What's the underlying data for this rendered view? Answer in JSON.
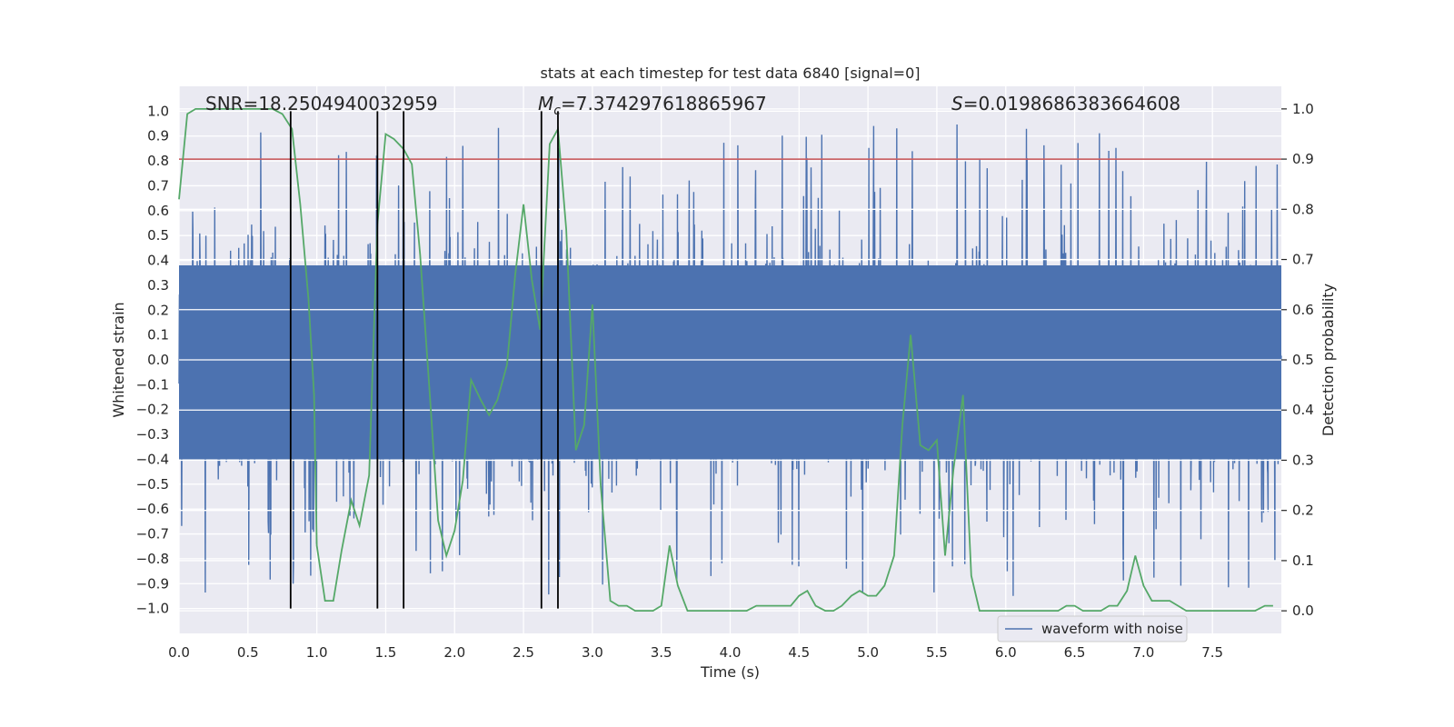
{
  "chart_data": {
    "type": "line",
    "title": "stats at each timestep for test data 6840 [signal=0]",
    "xlabel": "Time (s)",
    "ylabel": "Whitened strain",
    "y2label": "Detection probability",
    "xlim": [
      0,
      8.0
    ],
    "ylim": [
      -1.1,
      1.1
    ],
    "y2lim": [
      -0.045,
      1.045
    ],
    "x_ticks": [
      0.0,
      0.5,
      1.0,
      1.5,
      2.0,
      2.5,
      3.0,
      3.5,
      4.0,
      4.5,
      5.0,
      5.5,
      6.0,
      6.5,
      7.0,
      7.5
    ],
    "x_tick_labels": [
      "0.0",
      "0.5",
      "1.0",
      "1.5",
      "2.0",
      "2.5",
      "3.0",
      "3.5",
      "4.0",
      "4.5",
      "5.0",
      "5.5",
      "6.0",
      "6.5",
      "7.0",
      "7.5"
    ],
    "y_ticks": [
      1.0,
      0.9,
      0.8,
      0.7,
      0.6,
      0.5,
      0.4,
      0.3,
      0.2,
      0.1,
      0.0,
      -0.1,
      -0.2,
      -0.3,
      -0.4,
      -0.5,
      -0.6,
      -0.7,
      -0.8,
      -0.9,
      -1.0
    ],
    "y_tick_labels": [
      "1.0",
      "0.9",
      "0.8",
      "0.7",
      "0.6",
      "0.5",
      "0.4",
      "0.3",
      "0.2",
      "0.1",
      "0.0",
      "−0.1",
      "−0.2",
      "−0.3",
      "−0.4",
      "−0.5",
      "−0.6",
      "−0.7",
      "−0.8",
      "−0.9",
      "−1.0"
    ],
    "y2_ticks": [
      1.0,
      0.9,
      0.8,
      0.7,
      0.6,
      0.5,
      0.4,
      0.3,
      0.2,
      0.1,
      0.0
    ],
    "y2_tick_labels": [
      "1.0",
      "0.9",
      "0.8",
      "0.7",
      "0.6",
      "0.5",
      "0.4",
      "0.3",
      "0.2",
      "0.1",
      "0.0"
    ],
    "annotations": {
      "snr": "SNR=18.2504940032959",
      "mc_symbol": "M",
      "mc_sub": "c",
      "mc_value": "=7.374297618865967",
      "s_symbol": "S",
      "s_value": "=0.0198686383664608"
    },
    "threshold": {
      "y2": 0.9,
      "color": "#c44e52"
    },
    "vertical_lines": [
      0.81,
      1.44,
      1.63,
      2.63,
      2.75
    ],
    "vline_ymin": -1.0,
    "vline_ymax": 1.0,
    "legend": {
      "position": "lower-right",
      "label": "waveform with noise"
    },
    "colors": {
      "waveform": "#4c72b0",
      "probability": "#55a868",
      "vlines": "#000000",
      "background": "#eaeaf2"
    },
    "series": [
      {
        "name": "waveform with noise",
        "style": "dense-noise",
        "core_band": [
          -0.4,
          0.38
        ],
        "spike_max": 0.96,
        "spike_min": -1.0
      },
      {
        "name": "Detection probability",
        "axis": "y2",
        "points": [
          [
            0.0,
            0.82
          ],
          [
            0.06,
            0.99
          ],
          [
            0.12,
            1.0
          ],
          [
            0.3,
            1.0
          ],
          [
            0.5,
            1.0
          ],
          [
            0.68,
            1.0
          ],
          [
            0.75,
            0.99
          ],
          [
            0.82,
            0.96
          ],
          [
            0.88,
            0.81
          ],
          [
            0.94,
            0.62
          ],
          [
            0.98,
            0.43
          ],
          [
            1.0,
            0.13
          ],
          [
            1.06,
            0.02
          ],
          [
            1.12,
            0.02
          ],
          [
            1.18,
            0.12
          ],
          [
            1.25,
            0.22
          ],
          [
            1.31,
            0.17
          ],
          [
            1.38,
            0.27
          ],
          [
            1.44,
            0.77
          ],
          [
            1.5,
            0.95
          ],
          [
            1.56,
            0.94
          ],
          [
            1.63,
            0.92
          ],
          [
            1.69,
            0.89
          ],
          [
            1.75,
            0.71
          ],
          [
            1.82,
            0.43
          ],
          [
            1.88,
            0.18
          ],
          [
            1.94,
            0.11
          ],
          [
            2.0,
            0.16
          ],
          [
            2.06,
            0.26
          ],
          [
            2.12,
            0.46
          ],
          [
            2.19,
            0.42
          ],
          [
            2.25,
            0.39
          ],
          [
            2.31,
            0.42
          ],
          [
            2.38,
            0.49
          ],
          [
            2.44,
            0.67
          ],
          [
            2.5,
            0.81
          ],
          [
            2.56,
            0.66
          ],
          [
            2.62,
            0.56
          ],
          [
            2.69,
            0.93
          ],
          [
            2.75,
            0.96
          ],
          [
            2.81,
            0.76
          ],
          [
            2.88,
            0.32
          ],
          [
            2.94,
            0.37
          ],
          [
            3.0,
            0.61
          ],
          [
            3.06,
            0.25
          ],
          [
            3.13,
            0.02
          ],
          [
            3.19,
            0.01
          ],
          [
            3.25,
            0.01
          ],
          [
            3.31,
            0.0
          ],
          [
            3.38,
            0.0
          ],
          [
            3.44,
            0.0
          ],
          [
            3.5,
            0.01
          ],
          [
            3.56,
            0.13
          ],
          [
            3.62,
            0.05
          ],
          [
            3.69,
            0.0
          ],
          [
            3.75,
            0.0
          ],
          [
            3.81,
            0.0
          ],
          [
            4.0,
            0.0
          ],
          [
            4.12,
            0.0
          ],
          [
            4.19,
            0.01
          ],
          [
            4.25,
            0.01
          ],
          [
            4.31,
            0.01
          ],
          [
            4.38,
            0.01
          ],
          [
            4.44,
            0.01
          ],
          [
            4.5,
            0.03
          ],
          [
            4.56,
            0.04
          ],
          [
            4.62,
            0.01
          ],
          [
            4.69,
            0.0
          ],
          [
            4.75,
            0.0
          ],
          [
            4.81,
            0.01
          ],
          [
            4.88,
            0.03
          ],
          [
            4.94,
            0.04
          ],
          [
            5.0,
            0.03
          ],
          [
            5.06,
            0.03
          ],
          [
            5.12,
            0.05
          ],
          [
            5.19,
            0.11
          ],
          [
            5.25,
            0.37
          ],
          [
            5.31,
            0.55
          ],
          [
            5.38,
            0.33
          ],
          [
            5.44,
            0.32
          ],
          [
            5.5,
            0.34
          ],
          [
            5.56,
            0.11
          ],
          [
            5.62,
            0.28
          ],
          [
            5.69,
            0.43
          ],
          [
            5.75,
            0.07
          ],
          [
            5.81,
            0.0
          ],
          [
            5.88,
            0.0
          ],
          [
            5.94,
            0.0
          ],
          [
            6.0,
            0.0
          ],
          [
            6.12,
            0.0
          ],
          [
            6.25,
            0.0
          ],
          [
            6.38,
            0.0
          ],
          [
            6.44,
            0.01
          ],
          [
            6.5,
            0.01
          ],
          [
            6.56,
            0.0
          ],
          [
            6.62,
            0.0
          ],
          [
            6.69,
            0.0
          ],
          [
            6.75,
            0.01
          ],
          [
            6.81,
            0.01
          ],
          [
            6.88,
            0.04
          ],
          [
            6.94,
            0.11
          ],
          [
            7.0,
            0.05
          ],
          [
            7.06,
            0.02
          ],
          [
            7.12,
            0.02
          ],
          [
            7.19,
            0.02
          ],
          [
            7.25,
            0.01
          ],
          [
            7.31,
            0.0
          ],
          [
            7.5,
            0.0
          ],
          [
            7.69,
            0.0
          ],
          [
            7.75,
            0.0
          ],
          [
            7.81,
            0.0
          ],
          [
            7.88,
            0.01
          ],
          [
            7.94,
            0.01
          ]
        ]
      }
    ]
  }
}
